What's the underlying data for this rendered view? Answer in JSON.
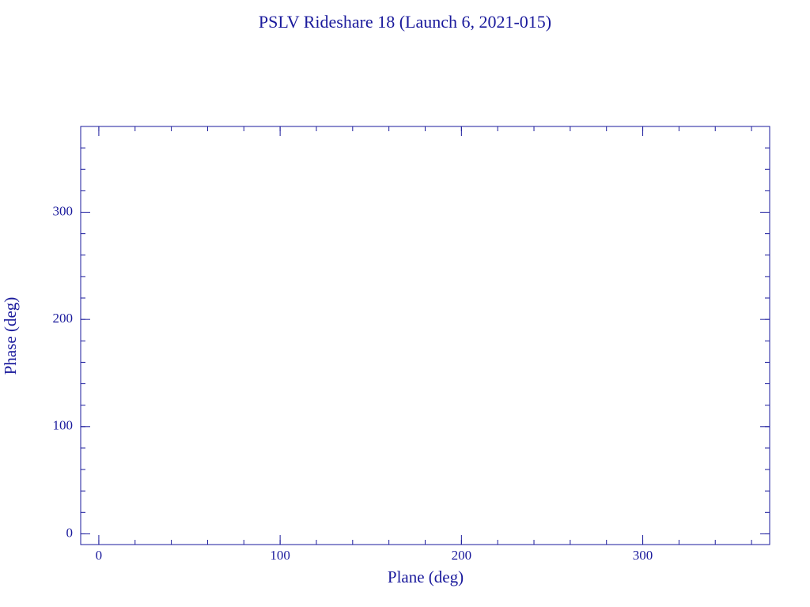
{
  "chart_data": {
    "type": "scatter",
    "title": "PSLV Rideshare 18 (Launch 6, 2021-015)",
    "x_label": "Plane (deg)",
    "y_label": "Phase (deg)",
    "x": [],
    "y": [],
    "xlim": [
      -10,
      370
    ],
    "ylim": [
      -10,
      380
    ],
    "xticks": [
      0,
      100,
      200,
      300
    ],
    "yticks": [
      0,
      100,
      200,
      300
    ],
    "xminorticks": [
      0,
      20,
      40,
      60,
      80,
      100,
      120,
      140,
      160,
      180,
      200,
      220,
      240,
      260,
      280,
      300,
      320,
      340,
      360
    ],
    "yminorticks": [
      0,
      20,
      40,
      60,
      80,
      100,
      120,
      140,
      160,
      180,
      200,
      220,
      240,
      260,
      280,
      300,
      320,
      340,
      360
    ],
    "color": "#1a1a9c"
  }
}
